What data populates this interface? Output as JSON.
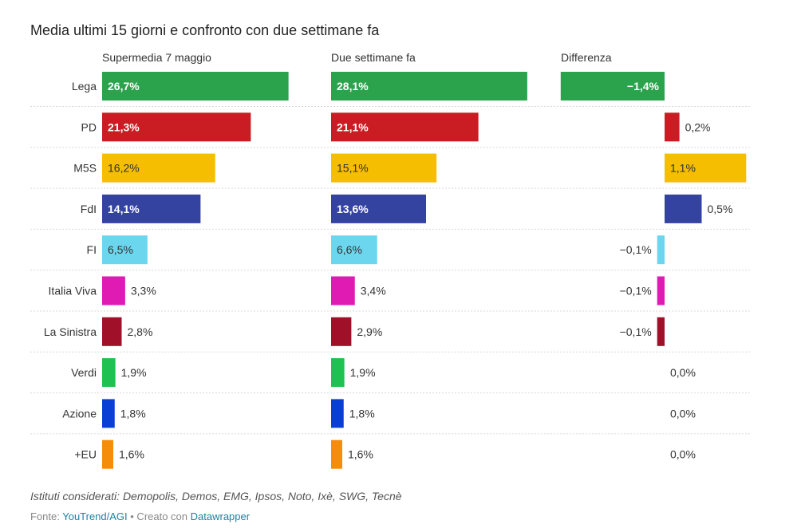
{
  "title": "Media ultimi 15 giorni e confronto con due settimane fa",
  "note": "Istituti considerati: Demopolis, Demos, EMG, Ipsos, Noto, Ixè, SWG, Tecnè",
  "source": {
    "prefix": "Fonte: ",
    "link1": "YouTrend/AGI",
    "middle": " • Creato con ",
    "link2": "Datawrapper"
  },
  "chart_data": {
    "type": "bar",
    "title": "Media ultimi 15 giorni e confronto con due settimane fa",
    "columns": [
      "Supermedia 7 maggio",
      "Due settimane fa",
      "Differenza"
    ],
    "categories": [
      "Lega",
      "PD",
      "M5S",
      "FdI",
      "FI",
      "Italia Viva",
      "La Sinistra",
      "Verdi",
      "Azione",
      "+EU"
    ],
    "colors": [
      "#2ba24c",
      "#c91d23",
      "#f5be00",
      "#3443a0",
      "#6dd6ef",
      "#e01bb4",
      "#a01029",
      "#1fc250",
      "#0a3fd6",
      "#f68d0a"
    ],
    "light_text": [
      true,
      true,
      false,
      true,
      false,
      false,
      false,
      false,
      false,
      false
    ],
    "series": [
      {
        "name": "Supermedia 7 maggio",
        "values": [
          26.7,
          21.3,
          16.2,
          14.1,
          6.5,
          3.3,
          2.8,
          1.9,
          1.8,
          1.6
        ],
        "labels": [
          "26,7%",
          "21,3%",
          "16,2%",
          "14,1%",
          "6,5%",
          "3,3%",
          "2,8%",
          "1,9%",
          "1,8%",
          "1,6%"
        ]
      },
      {
        "name": "Due settimane fa",
        "values": [
          28.1,
          21.1,
          15.1,
          13.6,
          6.6,
          3.4,
          2.9,
          1.9,
          1.8,
          1.6
        ],
        "labels": [
          "28,1%",
          "21,1%",
          "15,1%",
          "13,6%",
          "6,6%",
          "3,4%",
          "2,9%",
          "1,9%",
          "1,8%",
          "1,6%"
        ]
      },
      {
        "name": "Differenza",
        "values": [
          -1.4,
          0.2,
          1.1,
          0.5,
          -0.1,
          -0.1,
          -0.1,
          0.0,
          0.0,
          0.0
        ],
        "labels": [
          "−1,4%",
          "0,2%",
          "1,1%",
          "0,5%",
          "−0,1%",
          "−0,1%",
          "−0,1%",
          "0,0%",
          "0,0%",
          "0,0%"
        ]
      }
    ]
  }
}
